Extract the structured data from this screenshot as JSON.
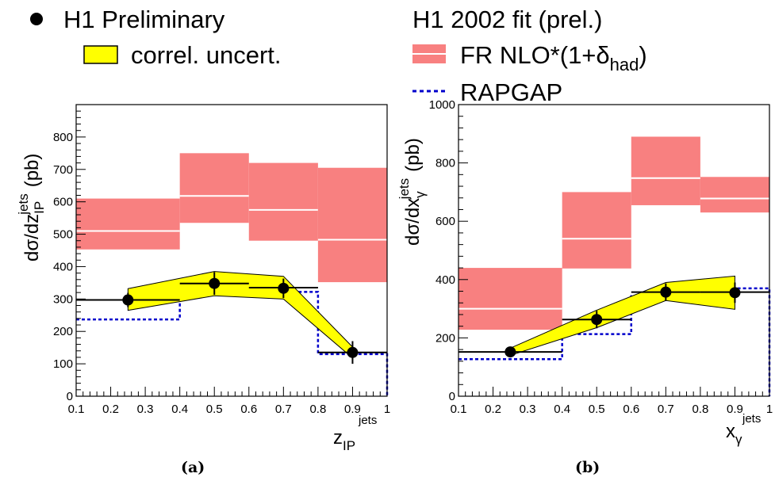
{
  "legend": {
    "h1_prelim": "H1 Preliminary",
    "correl": "correl. uncert.",
    "fit": "H1 2002 fit (prel.)",
    "fr_nlo_prefix": "FR NLO*(1+δ",
    "fr_nlo_sub": "had",
    "fr_nlo_suffix": ")",
    "rapgap": "RAPGAP"
  },
  "colors": {
    "band_fill": "#ffff00",
    "nlo_fill": "#f88080",
    "nlo_line": "#ffffff",
    "rapgap": "#0000cc",
    "data": "#000000"
  },
  "captions": {
    "a": "(a)",
    "b": "(b)"
  },
  "chart_data": [
    {
      "type": "line",
      "panel": "a",
      "ylabel": "dσ/dz",
      "ylabel_sub": "IP",
      "ylabel_sup": "jets",
      "ylabel_unit": "(pb)",
      "xlabel": "z",
      "xlabel_sub": "IP",
      "xlabel_sup": "jets",
      "xlim": [
        0.1,
        1.0
      ],
      "ylim": [
        0,
        900
      ],
      "xticks": [
        "0.1",
        "0.2",
        "0.3",
        "0.4",
        "0.5",
        "0.6",
        "0.7",
        "0.8",
        "0.9",
        "1"
      ],
      "yticks": [
        "0",
        "100",
        "200",
        "300",
        "400",
        "500",
        "600",
        "700",
        "800"
      ],
      "bin_edges": [
        0.1,
        0.4,
        0.6,
        0.8,
        1.0
      ],
      "series": [
        {
          "name": "H1 Preliminary",
          "kind": "points",
          "x": [
            0.25,
            0.5,
            0.7,
            0.9
          ],
          "y": [
            297,
            348,
            333,
            135
          ],
          "err": [
            22,
            35,
            30,
            35
          ]
        },
        {
          "kind": "hist",
          "values": [
            297,
            348,
            335,
            135
          ]
        },
        {
          "name": "correl. uncert.",
          "kind": "band",
          "x": [
            0.25,
            0.5,
            0.7,
            0.9
          ],
          "lo": [
            265,
            310,
            300,
            118
          ],
          "hi": [
            332,
            385,
            370,
            152
          ]
        },
        {
          "name": "FR NLO*(1+δhad)",
          "kind": "boxes",
          "lo": [
            453,
            535,
            480,
            352
          ],
          "hi": [
            610,
            750,
            720,
            705
          ],
          "center": [
            510,
            618,
            575,
            483
          ]
        },
        {
          "name": "RAPGAP",
          "kind": "hist",
          "values": [
            237,
            313,
            322,
            130
          ]
        }
      ]
    },
    {
      "type": "line",
      "panel": "b",
      "ylabel": "dσ/dx",
      "ylabel_sub": "γ",
      "ylabel_sup": "jets",
      "ylabel_unit": "(pb)",
      "xlabel": "x",
      "xlabel_sub": "γ",
      "xlabel_sup": "jets",
      "xlim": [
        0.1,
        1.0
      ],
      "ylim": [
        0,
        1000
      ],
      "xticks": [
        "0.1",
        "0.2",
        "0.3",
        "0.4",
        "0.5",
        "0.6",
        "0.7",
        "0.8",
        "0.9",
        "1"
      ],
      "yticks": [
        "0",
        "200",
        "400",
        "600",
        "800",
        "1000"
      ],
      "bin_edges": [
        0.1,
        0.4,
        0.6,
        0.8,
        1.0
      ],
      "series": [
        {
          "name": "H1 Preliminary",
          "kind": "points",
          "x": [
            0.25,
            0.5,
            0.7,
            0.9
          ],
          "y": [
            152,
            263,
            357,
            355
          ],
          "err": [
            12,
            30,
            30,
            35
          ]
        },
        {
          "kind": "hist",
          "values": [
            152,
            263,
            357,
            357
          ]
        },
        {
          "name": "correl. uncert.",
          "kind": "band",
          "x": [
            0.25,
            0.5,
            0.7,
            0.9
          ],
          "lo": [
            140,
            235,
            328,
            298
          ],
          "hi": [
            165,
            295,
            390,
            412
          ]
        },
        {
          "name": "FR NLO*(1+δhad)",
          "kind": "boxes",
          "lo": [
            228,
            438,
            655,
            630
          ],
          "hi": [
            440,
            700,
            890,
            752
          ],
          "center": [
            300,
            540,
            748,
            678
          ]
        },
        {
          "name": "RAPGAP",
          "kind": "hist",
          "values": [
            127,
            213,
            343,
            370
          ]
        }
      ]
    }
  ]
}
